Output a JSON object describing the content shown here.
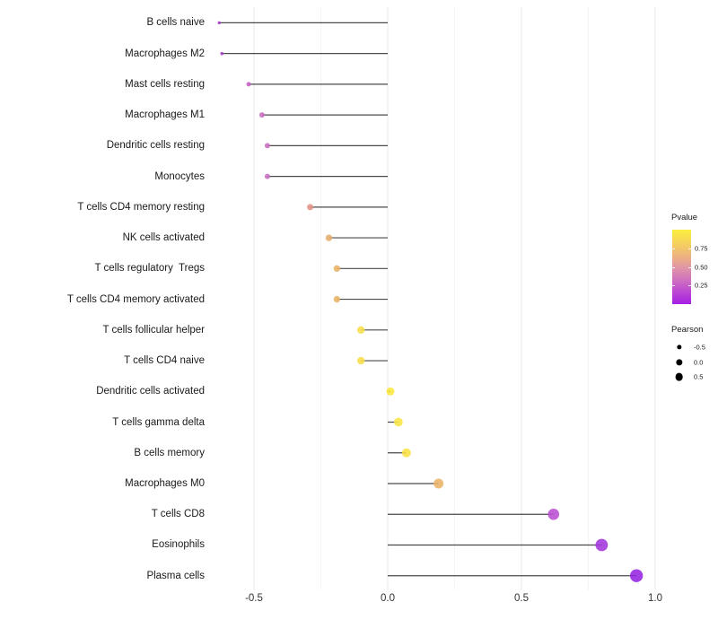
{
  "chart_data": {
    "type": "lollipop",
    "description": "Horizontal lollipop chart of Pearson correlation per immune cell type; dot color encodes P value, dot size encodes Pearson value",
    "xlabel": "",
    "ylabel": "",
    "xlim": [
      -0.75,
      1.1
    ],
    "grid": "vertical major at 0.5 steps, minor at 0.25 steps",
    "x_ticks": [
      {
        "label": "-0.5",
        "value": -0.5
      },
      {
        "label": "0.0",
        "value": 0.0
      },
      {
        "label": "0.5",
        "value": 0.5
      },
      {
        "label": "1.0",
        "value": 1.0
      }
    ],
    "x_minor_ticks": [
      -0.25,
      0.25,
      0.75
    ],
    "categories": [
      "B cells naive",
      "Macrophages M2",
      "Mast cells resting",
      "Macrophages M1",
      "Dendritic cells resting",
      "Monocytes",
      "T cells CD4 memory resting",
      "NK cells activated",
      "T cells regulatory  Tregs",
      "T cells CD4 memory activated",
      "T cells follicular helper",
      "T cells CD4 naive",
      "Dendritic cells activated",
      "T cells gamma delta",
      "B cells memory",
      "Macrophages M0",
      "T cells CD8",
      "Eosinophils",
      "Plasma cells"
    ],
    "points": [
      {
        "label": "B cells naive",
        "pearson": -0.63,
        "pvalue_approx": 0.1,
        "color": "#A437C8",
        "diameter": 3.4
      },
      {
        "label": "Macrophages M2",
        "pearson": -0.62,
        "pvalue_approx": 0.1,
        "color": "#A53AC8",
        "diameter": 3.6
      },
      {
        "label": "Mast cells resting",
        "pearson": -0.52,
        "pvalue_approx": 0.28,
        "color": "#C75FC6",
        "diameter": 5.0
      },
      {
        "label": "Macrophages M1",
        "pearson": -0.47,
        "pvalue_approx": 0.32,
        "color": "#C96BC3",
        "diameter": 6.0
      },
      {
        "label": "Dendritic cells resting",
        "pearson": -0.45,
        "pvalue_approx": 0.33,
        "color": "#CA6EC2",
        "diameter": 6.0
      },
      {
        "label": "Monocytes",
        "pearson": -0.45,
        "pvalue_approx": 0.33,
        "color": "#CA6EC2",
        "diameter": 6.0
      },
      {
        "label": "T cells CD4 memory resting",
        "pearson": -0.29,
        "pvalue_approx": 0.5,
        "color": "#E29286",
        "diameter": 7.0
      },
      {
        "label": "NK cells activated",
        "pearson": -0.22,
        "pvalue_approx": 0.6,
        "color": "#E6AE70",
        "diameter": 7.4
      },
      {
        "label": "T cells regulatory  Tregs",
        "pearson": -0.19,
        "pvalue_approx": 0.62,
        "color": "#E9B366",
        "diameter": 7.4
      },
      {
        "label": "T cells CD4 memory activated",
        "pearson": -0.19,
        "pvalue_approx": 0.62,
        "color": "#E9B366",
        "diameter": 7.4
      },
      {
        "label": "T cells follicular helper",
        "pearson": -0.1,
        "pvalue_approx": 0.82,
        "color": "#F7DE49",
        "diameter": 8.4
      },
      {
        "label": "T cells CD4 naive",
        "pearson": -0.1,
        "pvalue_approx": 0.82,
        "color": "#F7DE49",
        "diameter": 8.4
      },
      {
        "label": "Dendritic cells activated",
        "pearson": 0.01,
        "pvalue_approx": 0.95,
        "color": "#FAE93E",
        "diameter": 9.0
      },
      {
        "label": "T cells gamma delta",
        "pearson": 0.04,
        "pvalue_approx": 0.9,
        "color": "#F9E643",
        "diameter": 9.8
      },
      {
        "label": "B cells memory",
        "pearson": 0.07,
        "pvalue_approx": 0.87,
        "color": "#F8E046",
        "diameter": 10.0
      },
      {
        "label": "Macrophages M0",
        "pearson": 0.19,
        "pvalue_approx": 0.62,
        "color": "#EBB366",
        "diameter": 11.0
      },
      {
        "label": "T cells CD8",
        "pearson": 0.62,
        "pvalue_approx": 0.18,
        "color": "#B94FD2",
        "diameter": 12.6
      },
      {
        "label": "Eosinophils",
        "pearson": 0.8,
        "pvalue_approx": 0.08,
        "color": "#A335DC",
        "diameter": 13.8
      },
      {
        "label": "Plasma cells",
        "pearson": 0.93,
        "pvalue_approx": 0.03,
        "color": "#9526E1",
        "diameter": 14.4
      }
    ],
    "stem_color": "#4a4a4a",
    "grid_major_color": "#e8e8e8",
    "grid_minor_color": "#f4f4f4",
    "legend": {
      "pvalue": {
        "title": "Pvalue",
        "ticks": [
          {
            "label": "0.75",
            "value": 0.75
          },
          {
            "label": "0.50",
            "value": 0.5
          },
          {
            "label": "0.25",
            "value": 0.25
          }
        ],
        "range": [
          0,
          1
        ],
        "gradient_bottom": "#A51FE3",
        "gradient_top": "#FBEE3F"
      },
      "pearson": {
        "title": "Pearson",
        "items": [
          {
            "label": "-0.5",
            "diameter": 5.3
          },
          {
            "label": "0.0",
            "diameter": 7.3
          },
          {
            "label": "0.5",
            "diameter": 8.7
          }
        ],
        "dot_color": "#000000"
      }
    }
  }
}
